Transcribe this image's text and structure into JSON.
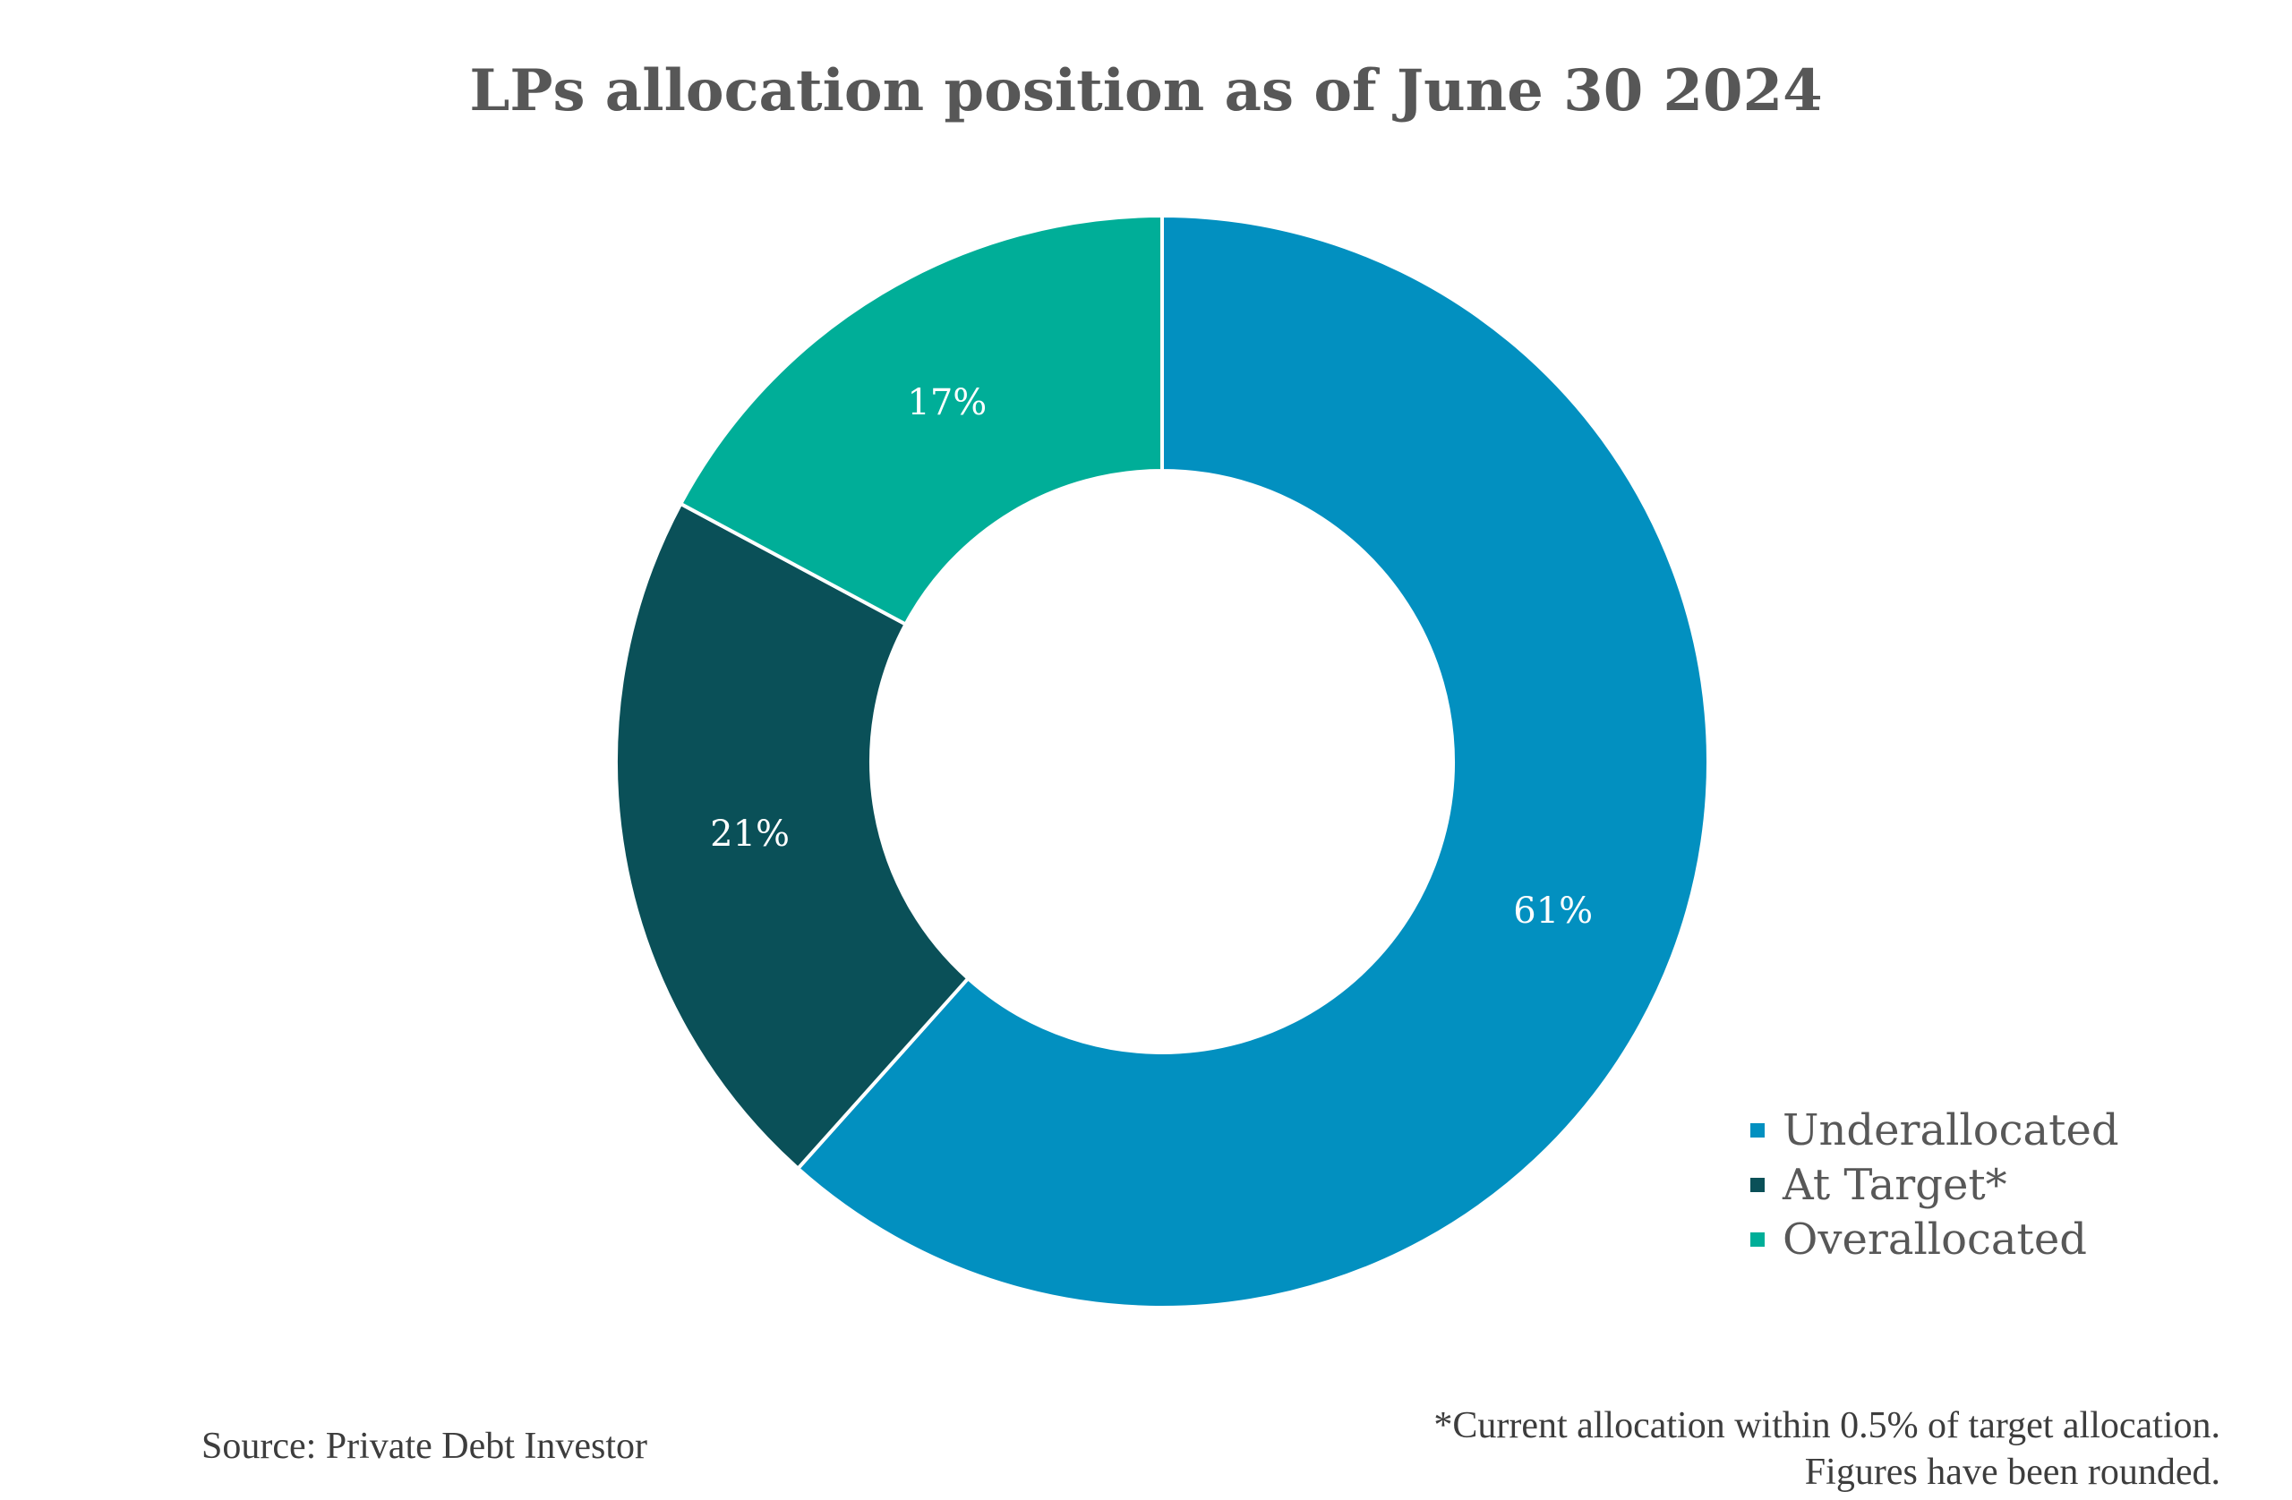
{
  "chart_data": {
    "type": "pie",
    "style": "donut",
    "title": "LPs allocation position as of June 30 2024",
    "categories": [
      "Underallocated",
      "At Target*",
      "Overallocated"
    ],
    "values": [
      61,
      21,
      17
    ],
    "value_labels": [
      "61%",
      "21%",
      "17%"
    ],
    "colors": [
      "#0290C0",
      "#0A5058",
      "#00AE98"
    ],
    "legend_position": "bottom-right"
  },
  "source": "Source: Private Debt Investor",
  "footnote": {
    "line1": "*Current allocation within 0.5% of target allocation.",
    "line2": "Figures have been rounded."
  }
}
